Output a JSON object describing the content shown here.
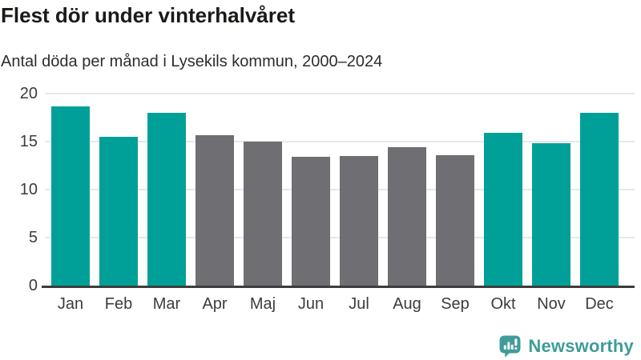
{
  "header": {
    "title": "Flest dör under vinterhalvåret",
    "subtitle": "Antal döda per månad i Lysekils kommun, 2000–2024"
  },
  "chart_data": {
    "type": "bar",
    "title": "Flest dör under vinterhalvåret",
    "subtitle": "Antal döda per månad i Lysekils kommun, 2000–2024",
    "categories": [
      "Jan",
      "Feb",
      "Mar",
      "Apr",
      "Maj",
      "Jun",
      "Jul",
      "Aug",
      "Sep",
      "Okt",
      "Nov",
      "Dec"
    ],
    "values": [
      18.7,
      15.5,
      18.0,
      15.7,
      15.0,
      13.4,
      13.5,
      14.4,
      13.6,
      15.9,
      14.8,
      18.0
    ],
    "bar_roles": [
      "winter",
      "winter",
      "winter",
      "summer",
      "summer",
      "summer",
      "summer",
      "summer",
      "summer",
      "winter",
      "winter",
      "winter"
    ],
    "colors": {
      "winter": "#00a099",
      "summer": "#6e6e73"
    },
    "xlabel": "",
    "ylabel": "",
    "ylim": [
      0,
      20
    ],
    "yticks": [
      0,
      5,
      10,
      15,
      20
    ],
    "grid": "horizontal-only",
    "legend": "none"
  },
  "footer": {
    "brand": "Newsworthy",
    "brand_color": "#3f9c99",
    "logo_icon": "speech-bubble-bar-chart-icon"
  }
}
